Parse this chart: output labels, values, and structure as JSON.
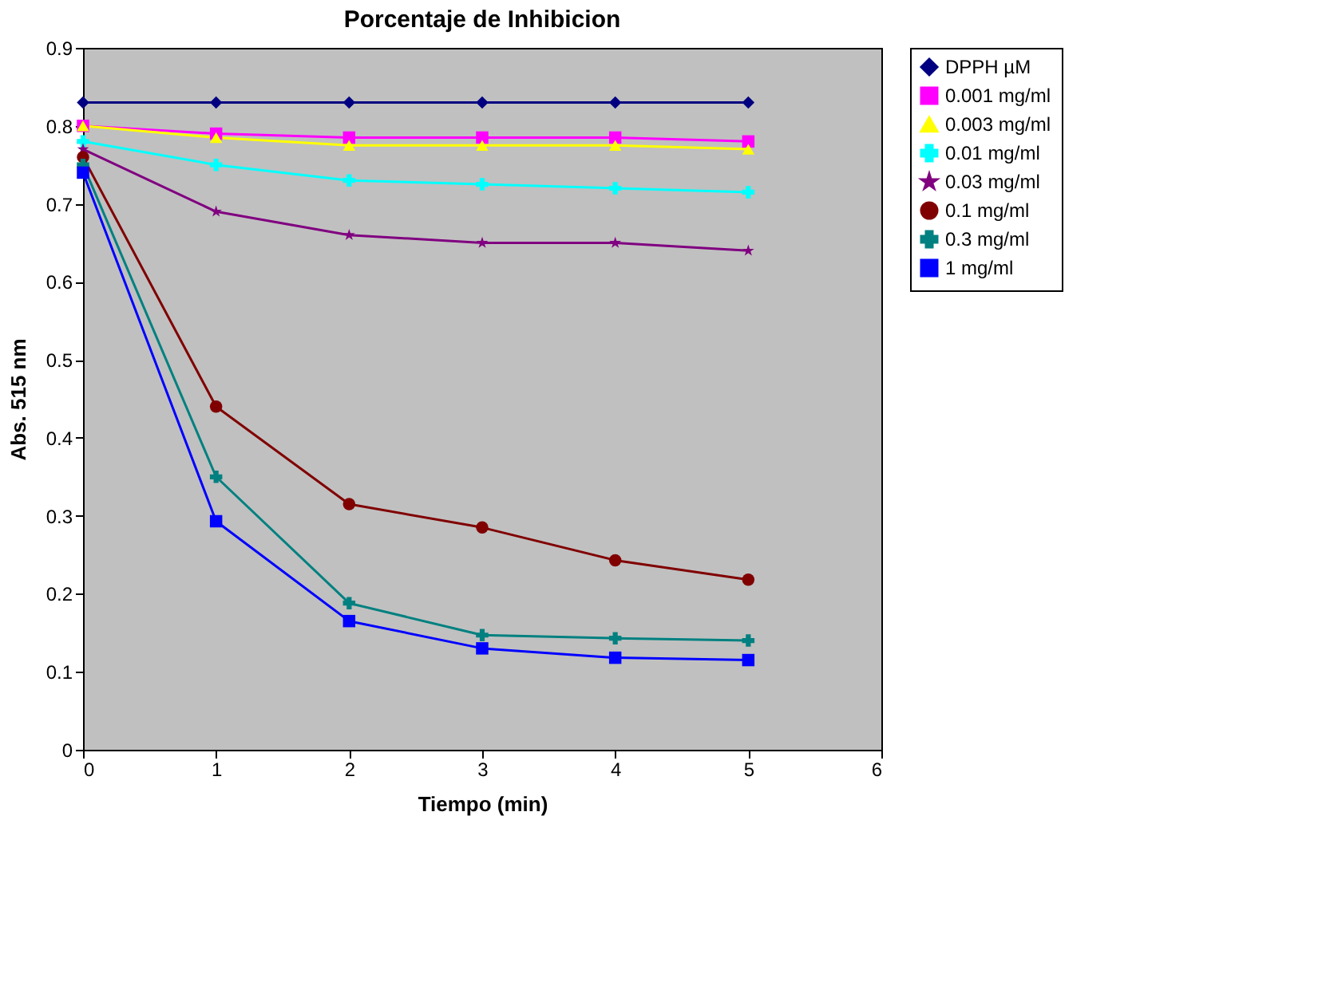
{
  "chart_data": {
    "type": "line",
    "title": "Porcentaje de Inhibicion",
    "xlabel": "Tiempo (min)",
    "ylabel": "Abs. 515 nm",
    "x": [
      0,
      1,
      2,
      3,
      4,
      5
    ],
    "xlim": [
      0,
      6
    ],
    "xticks": [
      0,
      1,
      2,
      3,
      4,
      5,
      6
    ],
    "ylim": [
      0,
      0.9
    ],
    "yticks": [
      0,
      0.1,
      0.2,
      0.3,
      0.4,
      0.5,
      0.6,
      0.7,
      0.8,
      0.9
    ],
    "grid": false,
    "legend": "right",
    "line_style": "solid",
    "series": [
      {
        "name": "DPPH µM",
        "color": "#000080",
        "marker": "diamond",
        "values": [
          0.83,
          0.83,
          0.83,
          0.83,
          0.83,
          0.83
        ]
      },
      {
        "name": "0.001 mg/ml",
        "color": "#ff00ff",
        "marker": "square",
        "values": [
          0.8,
          0.79,
          0.785,
          0.785,
          0.785,
          0.78
        ]
      },
      {
        "name": "0.003 mg/ml",
        "color": "#ffff00",
        "marker": "triangle",
        "values": [
          0.8,
          0.785,
          0.775,
          0.775,
          0.775,
          0.77
        ]
      },
      {
        "name": "0.01 mg/ml",
        "color": "#00ffff",
        "marker": "cross",
        "values": [
          0.78,
          0.75,
          0.73,
          0.725,
          0.72,
          0.715
        ]
      },
      {
        "name": "0.03 mg/ml",
        "color": "#800080",
        "marker": "star",
        "values": [
          0.77,
          0.69,
          0.66,
          0.65,
          0.65,
          0.64
        ]
      },
      {
        "name": "0.1 mg/ml",
        "color": "#800000",
        "marker": "circle",
        "values": [
          0.76,
          0.44,
          0.315,
          0.285,
          0.243,
          0.218
        ]
      },
      {
        "name": "0.3 mg/ml",
        "color": "#008080",
        "marker": "cross",
        "values": [
          0.75,
          0.35,
          0.188,
          0.147,
          0.143,
          0.14
        ]
      },
      {
        "name": "1 mg/ml",
        "color": "#0000ff",
        "marker": "square",
        "values": [
          0.74,
          0.293,
          0.165,
          0.13,
          0.118,
          0.115
        ]
      }
    ]
  }
}
